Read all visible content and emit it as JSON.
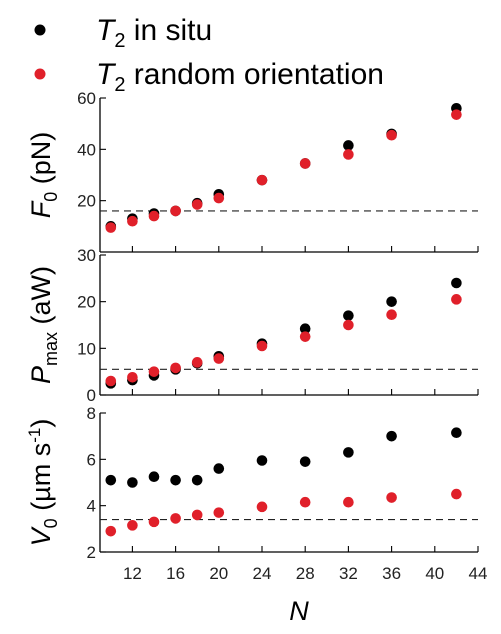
{
  "chart_data": {
    "type": "scatter",
    "legend": {
      "placement": "top-left",
      "entries": [
        {
          "symbol": "T",
          "sub": "2",
          "rest": " in situ",
          "color": "#000000"
        },
        {
          "symbol": "T",
          "sub": "2",
          "rest": " random orientation",
          "color": "#e0202a"
        }
      ]
    },
    "x_axis": {
      "label": "N",
      "range": [
        9,
        44
      ],
      "ticks": [
        12,
        16,
        20,
        24,
        28,
        32,
        36,
        40,
        44
      ]
    },
    "panels": [
      {
        "id": "F0",
        "ylabel": {
          "main": "F",
          "sub": "0",
          "unit": " (pN)"
        },
        "ylim": [
          0,
          60
        ],
        "ticks": [
          20,
          40,
          60
        ],
        "reference_line": 16,
        "series": [
          {
            "name": "T2 in situ",
            "color": "#000000",
            "x": [
              10,
              12,
              14,
              16,
              18,
              20,
              24,
              28,
              32,
              36,
              42
            ],
            "y": [
              10,
              13,
              15,
              16,
              19,
              22.5,
              28,
              34.5,
              41.5,
              46,
              56
            ]
          },
          {
            "name": "T2 random orientation",
            "color": "#e0202a",
            "x": [
              10,
              12,
              14,
              16,
              18,
              20,
              24,
              28,
              32,
              36,
              42
            ],
            "y": [
              9.5,
              12,
              14,
              16,
              18.5,
              21,
              28,
              34.5,
              38,
              45.5,
              53.5
            ]
          }
        ]
      },
      {
        "id": "Pmax",
        "ylabel": {
          "main": "P",
          "sub": "max",
          "unit": " (aW)"
        },
        "ylim": [
          0,
          30
        ],
        "ticks": [
          0,
          10,
          20,
          30
        ],
        "reference_line": 5.5,
        "series": [
          {
            "name": "T2 in situ",
            "color": "#000000",
            "x": [
              10,
              12,
              14,
              16,
              18,
              20,
              24,
              28,
              32,
              36,
              42
            ],
            "y": [
              2.5,
              3.2,
              4.2,
              5.5,
              6.8,
              8.3,
              11,
              14.2,
              17,
              20,
              24
            ]
          },
          {
            "name": "T2 random orientation",
            "color": "#e0202a",
            "x": [
              10,
              12,
              14,
              16,
              18,
              20,
              24,
              28,
              32,
              36,
              42
            ],
            "y": [
              3,
              3.8,
              5,
              5.8,
              7,
              7.8,
              10.5,
              12.5,
              15,
              17.2,
              20.5
            ]
          }
        ]
      },
      {
        "id": "V0",
        "ylabel": {
          "main": "V",
          "sub": "0",
          "unit": " (µm s",
          "sup": "-1",
          "close": ")"
        },
        "ylim": [
          2,
          8
        ],
        "ticks": [
          2,
          4,
          6,
          8
        ],
        "reference_line": 3.4,
        "series": [
          {
            "name": "T2 in situ",
            "color": "#000000",
            "x": [
              10,
              12,
              14,
              16,
              18,
              20,
              24,
              28,
              32,
              36,
              42
            ],
            "y": [
              5.1,
              5.0,
              5.25,
              5.1,
              5.1,
              5.6,
              5.95,
              5.9,
              6.3,
              7.0,
              7.15
            ]
          },
          {
            "name": "T2 random orientation",
            "color": "#e0202a",
            "x": [
              10,
              12,
              14,
              16,
              18,
              20,
              24,
              28,
              32,
              36,
              42
            ],
            "y": [
              2.9,
              3.15,
              3.3,
              3.45,
              3.6,
              3.7,
              3.95,
              4.15,
              4.15,
              4.35,
              4.5
            ]
          }
        ]
      }
    ]
  }
}
